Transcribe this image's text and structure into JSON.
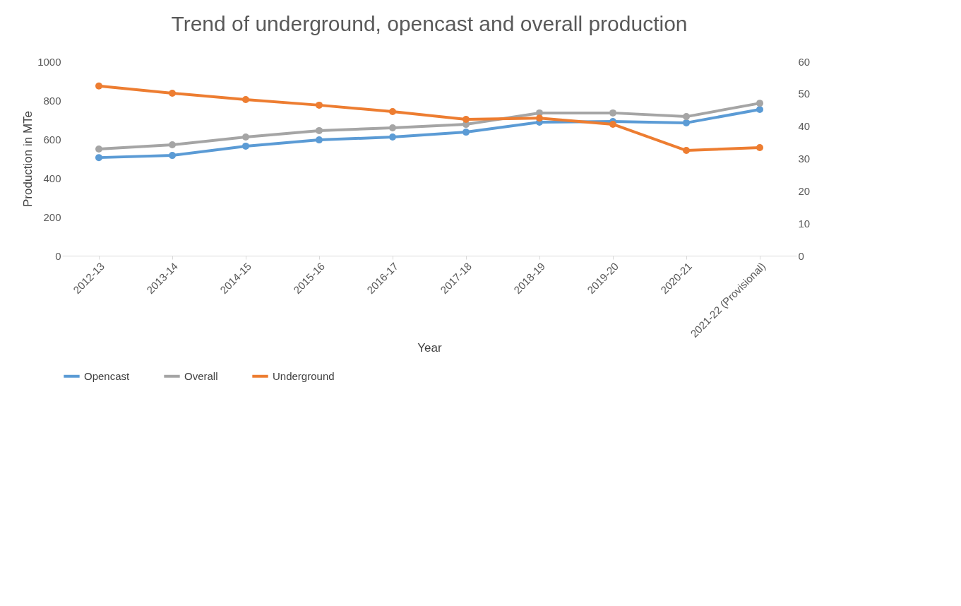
{
  "chart_data": {
    "type": "line",
    "title": "Trend of underground, opencast and overall production",
    "xlabel": "Year",
    "ylabel": "Production in MTe",
    "categories": [
      "2012-13",
      "2013-14",
      "2014-15",
      "2015-16",
      "2016-17",
      "2017-18",
      "2018-19",
      "2019-20",
      "2020-21",
      "2021-22 (Provisional)"
    ],
    "series": [
      {
        "name": "Opencast",
        "color": "#5b9bd5",
        "values": [
          505,
          516,
          564,
          596,
          611,
          636,
          687,
          691,
          684,
          753
        ]
      },
      {
        "name": "Overall",
        "color": "#a5a5a5",
        "values": [
          549,
          571,
          611,
          644,
          658,
          676,
          735,
          735,
          716,
          785
        ]
      },
      {
        "name": "Underground",
        "color": "#ed7d31",
        "axis": "y2",
        "values": [
          52.4,
          50.2,
          48.2,
          46.5,
          44.5,
          42.1,
          42.5,
          40.6,
          32.5,
          33.4
        ]
      }
    ],
    "ylim": [
      0,
      1000
    ],
    "yticks": [
      0,
      200,
      400,
      600,
      800,
      1000
    ],
    "y2lim": [
      0,
      60
    ],
    "y2ticks": [
      0,
      10,
      20,
      30,
      40,
      50,
      60
    ],
    "grid": false,
    "legend": "bottom",
    "marker": "circle",
    "line_style": "solid"
  }
}
